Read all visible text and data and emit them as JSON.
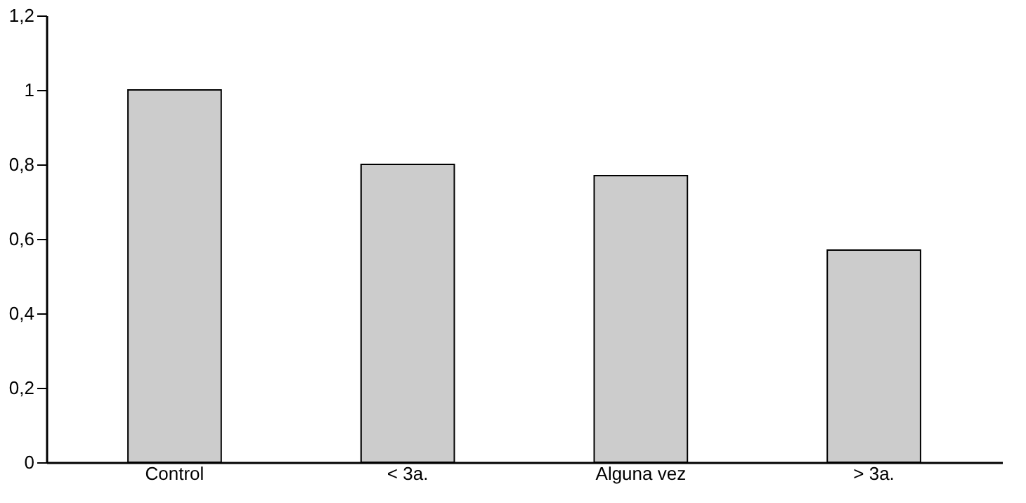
{
  "chart_data": {
    "type": "bar",
    "categories": [
      "Control",
      "< 3a.",
      "Alguna vez",
      "> 3a."
    ],
    "values": [
      1.0,
      0.8,
      0.77,
      0.57
    ],
    "color": "#cccccc",
    "ylim": [
      0,
      1.2
    ],
    "yticks": [
      0,
      {
        "value": 0.2,
        "label": "0,2"
      },
      {
        "value": 0.4,
        "label": "0,4"
      },
      {
        "value": 0.6,
        "label": "0,6"
      },
      {
        "value": 0.8,
        "label": "0,8"
      },
      1,
      {
        "value": 1.2,
        "label": "1,2"
      }
    ],
    "grid": false
  }
}
